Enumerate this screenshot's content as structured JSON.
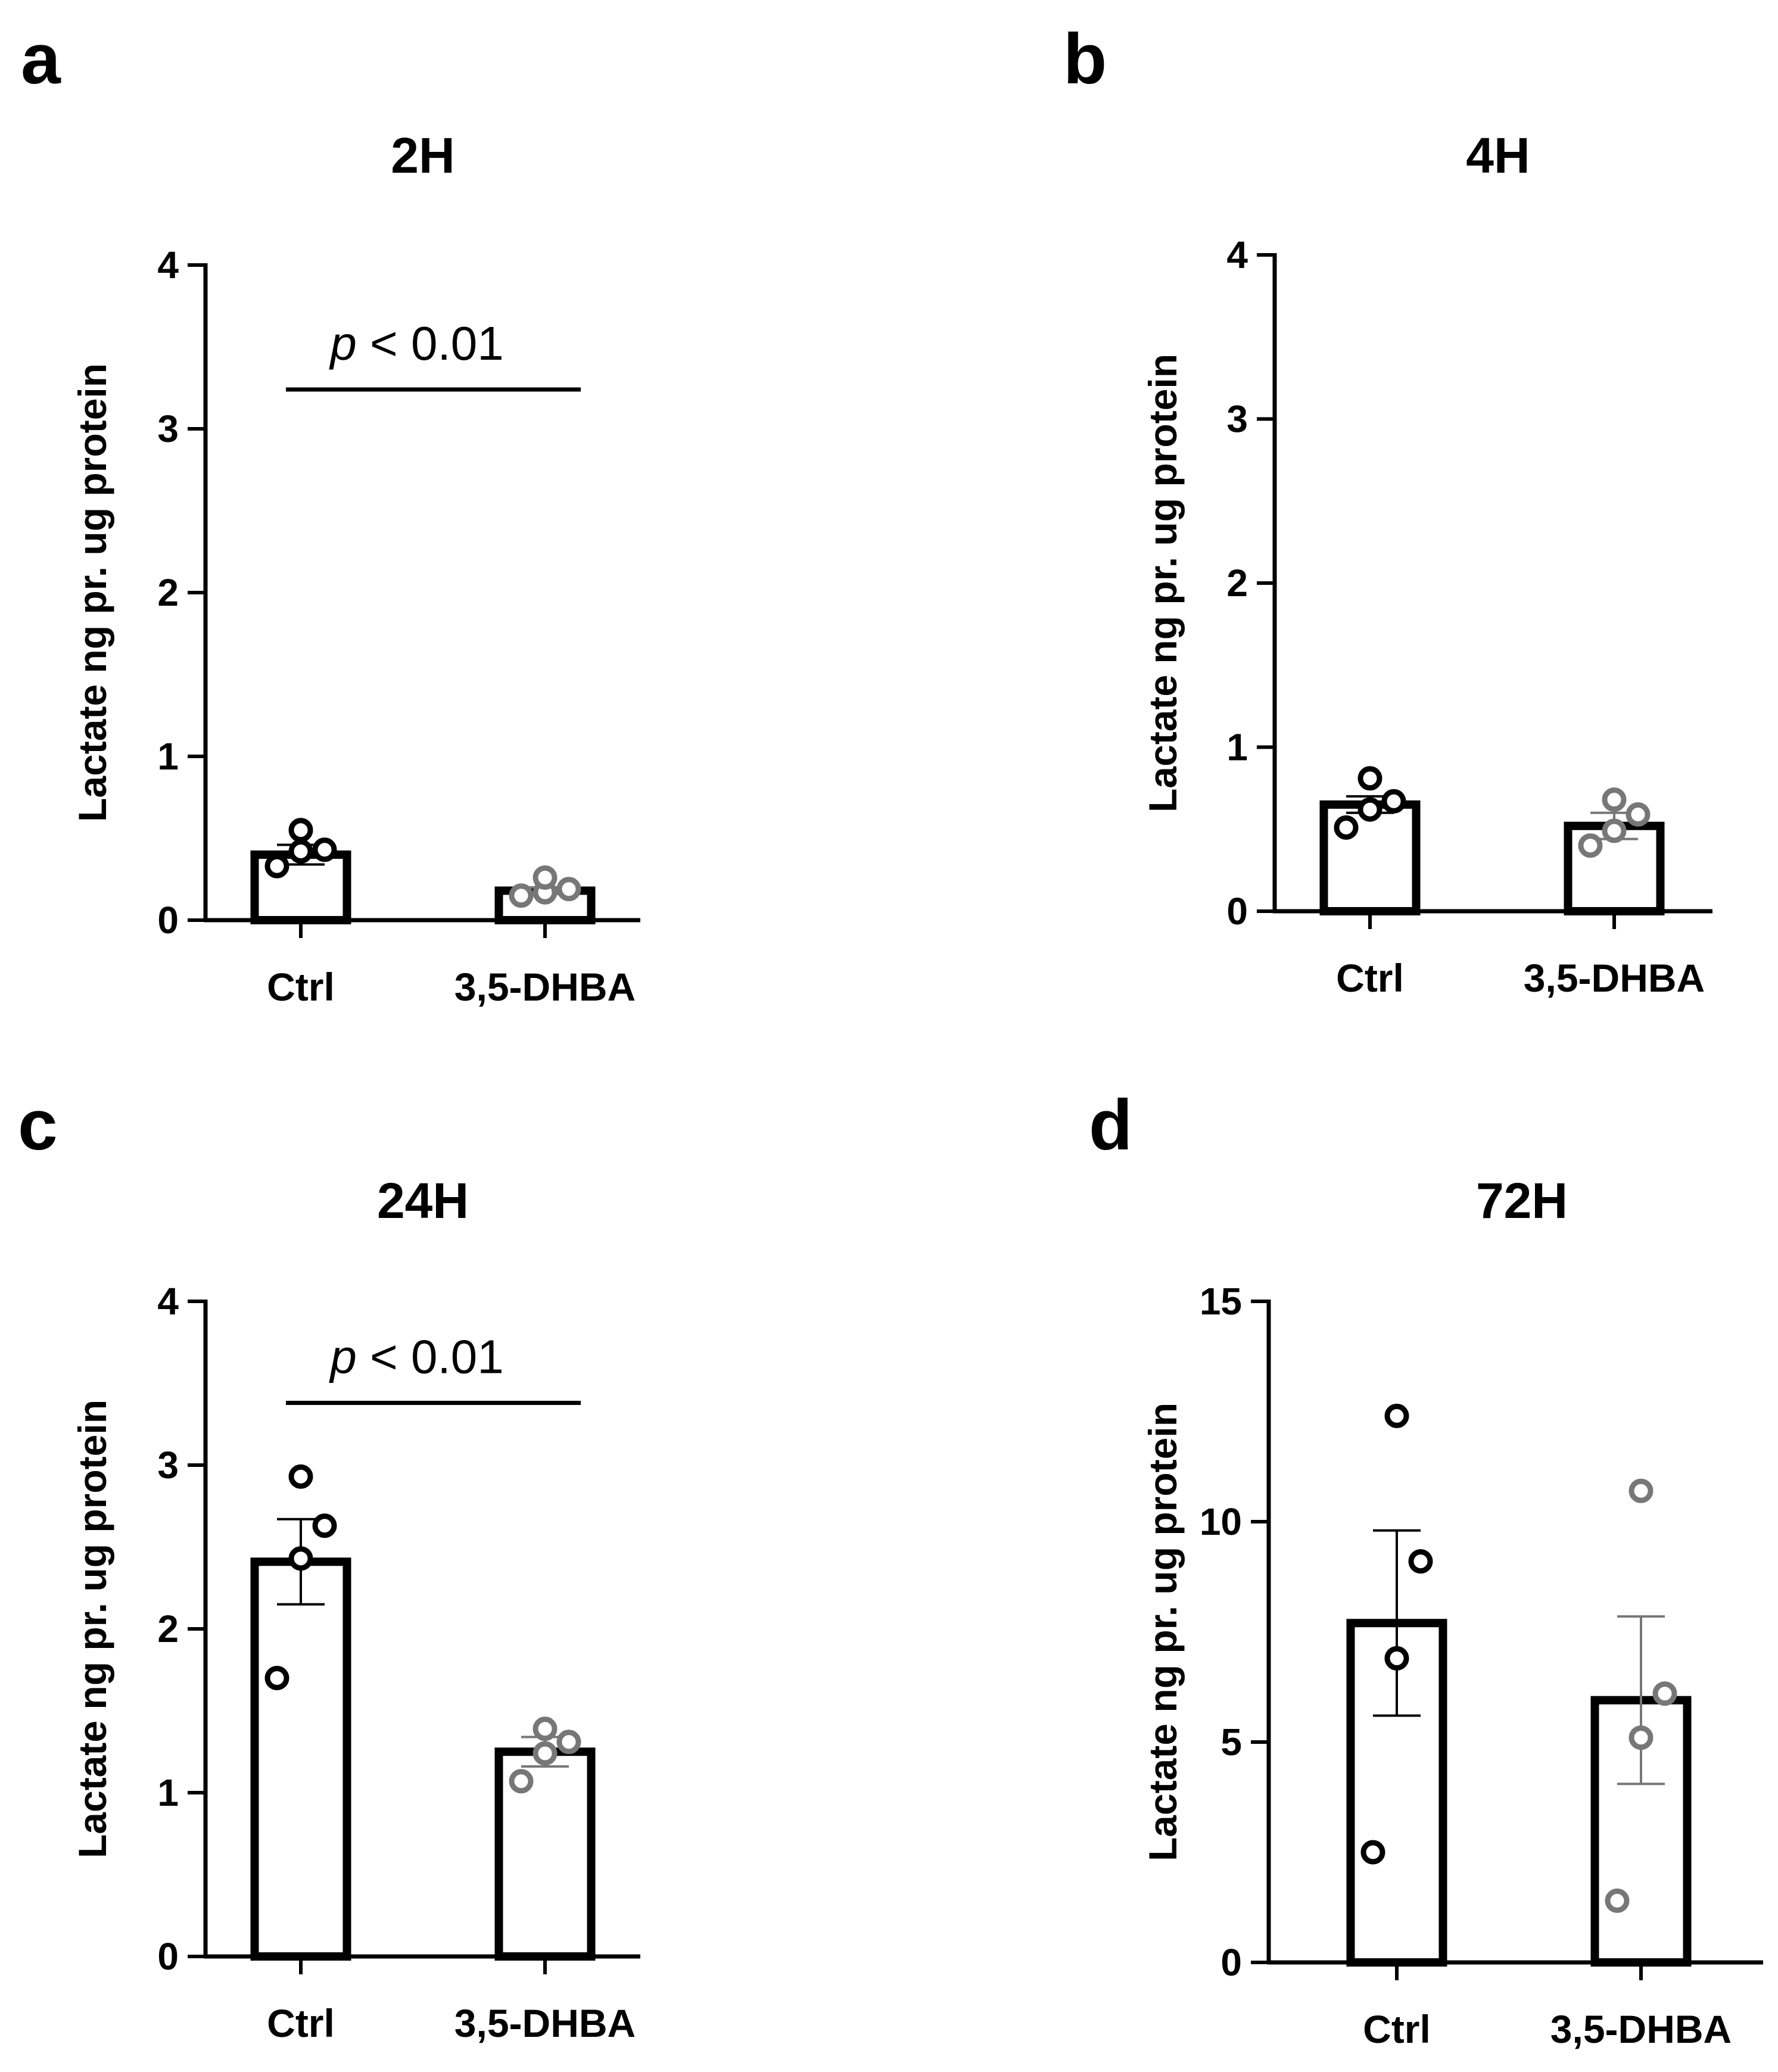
{
  "chart_data": [
    {
      "panel": "a",
      "type": "bar",
      "title": "2H",
      "ylabel": "Lactate ng pr. ug protein",
      "xlabel": "",
      "categories": [
        "Ctrl",
        "3,5-DHBA"
      ],
      "ylim": [
        0,
        4
      ],
      "yticks": [
        "0",
        "1",
        "2",
        "3",
        "4"
      ],
      "colors": [
        "#000000",
        "#777777"
      ],
      "series": [
        {
          "values": [
            0.4,
            0.18
          ],
          "errors": [
            0.06,
            0.02
          ]
        }
      ],
      "points": [
        [
          0.33,
          0.42,
          0.43,
          0.55
        ],
        [
          0.15,
          0.17,
          0.19,
          0.26
        ]
      ],
      "significance": {
        "p_prefix": "p",
        "text": " < 0.01",
        "y": 3.24
      },
      "grid": false,
      "legend": "none"
    },
    {
      "panel": "b",
      "type": "bar",
      "title": "4H",
      "ylabel": "Lactate ng pr. ug protein",
      "xlabel": "",
      "categories": [
        "Ctrl",
        "3,5-DHBA"
      ],
      "ylim": [
        0,
        4
      ],
      "yticks": [
        "0",
        "1",
        "2",
        "3",
        "4"
      ],
      "colors": [
        "#000000",
        "#777777"
      ],
      "series": [
        {
          "values": [
            0.65,
            0.52
          ],
          "errors": [
            0.05,
            0.08
          ]
        }
      ],
      "points": [
        [
          0.51,
          0.62,
          0.67,
          0.81
        ],
        [
          0.4,
          0.49,
          0.59,
          0.68
        ]
      ],
      "grid": false,
      "legend": "none"
    },
    {
      "panel": "c",
      "type": "bar",
      "title": "24H",
      "ylabel": "Lactate ng pr. ug protein",
      "xlabel": "",
      "categories": [
        "Ctrl",
        "3,5-DHBA"
      ],
      "ylim": [
        0,
        4
      ],
      "yticks": [
        "0",
        "1",
        "2",
        "3",
        "4"
      ],
      "colors": [
        "#000000",
        "#777777"
      ],
      "series": [
        {
          "values": [
            2.41,
            1.25
          ],
          "errors": [
            0.26,
            0.09
          ]
        }
      ],
      "points": [
        [
          1.7,
          2.43,
          2.63,
          2.93
        ],
        [
          1.07,
          1.24,
          1.31,
          1.39
        ]
      ],
      "significance": {
        "p_prefix": "p",
        "text": " < 0.01",
        "y": 3.38
      },
      "grid": false,
      "legend": "none"
    },
    {
      "panel": "d",
      "type": "bar",
      "title": "72H",
      "ylabel": "Lactate ng pr. ug protein",
      "xlabel": "",
      "categories": [
        "Ctrl",
        "3,5-DHBA"
      ],
      "ylim": [
        0,
        15
      ],
      "yticks": [
        "0",
        "5",
        "10",
        "15"
      ],
      "colors": [
        "#000000",
        "#777777"
      ],
      "series": [
        {
          "values": [
            7.7,
            5.95
          ],
          "errors": [
            2.1,
            1.9
          ]
        }
      ],
      "points": [
        [
          2.5,
          6.9,
          9.1,
          12.4
        ],
        [
          1.4,
          5.1,
          6.1,
          10.7
        ]
      ],
      "grid": false,
      "legend": "none"
    }
  ]
}
